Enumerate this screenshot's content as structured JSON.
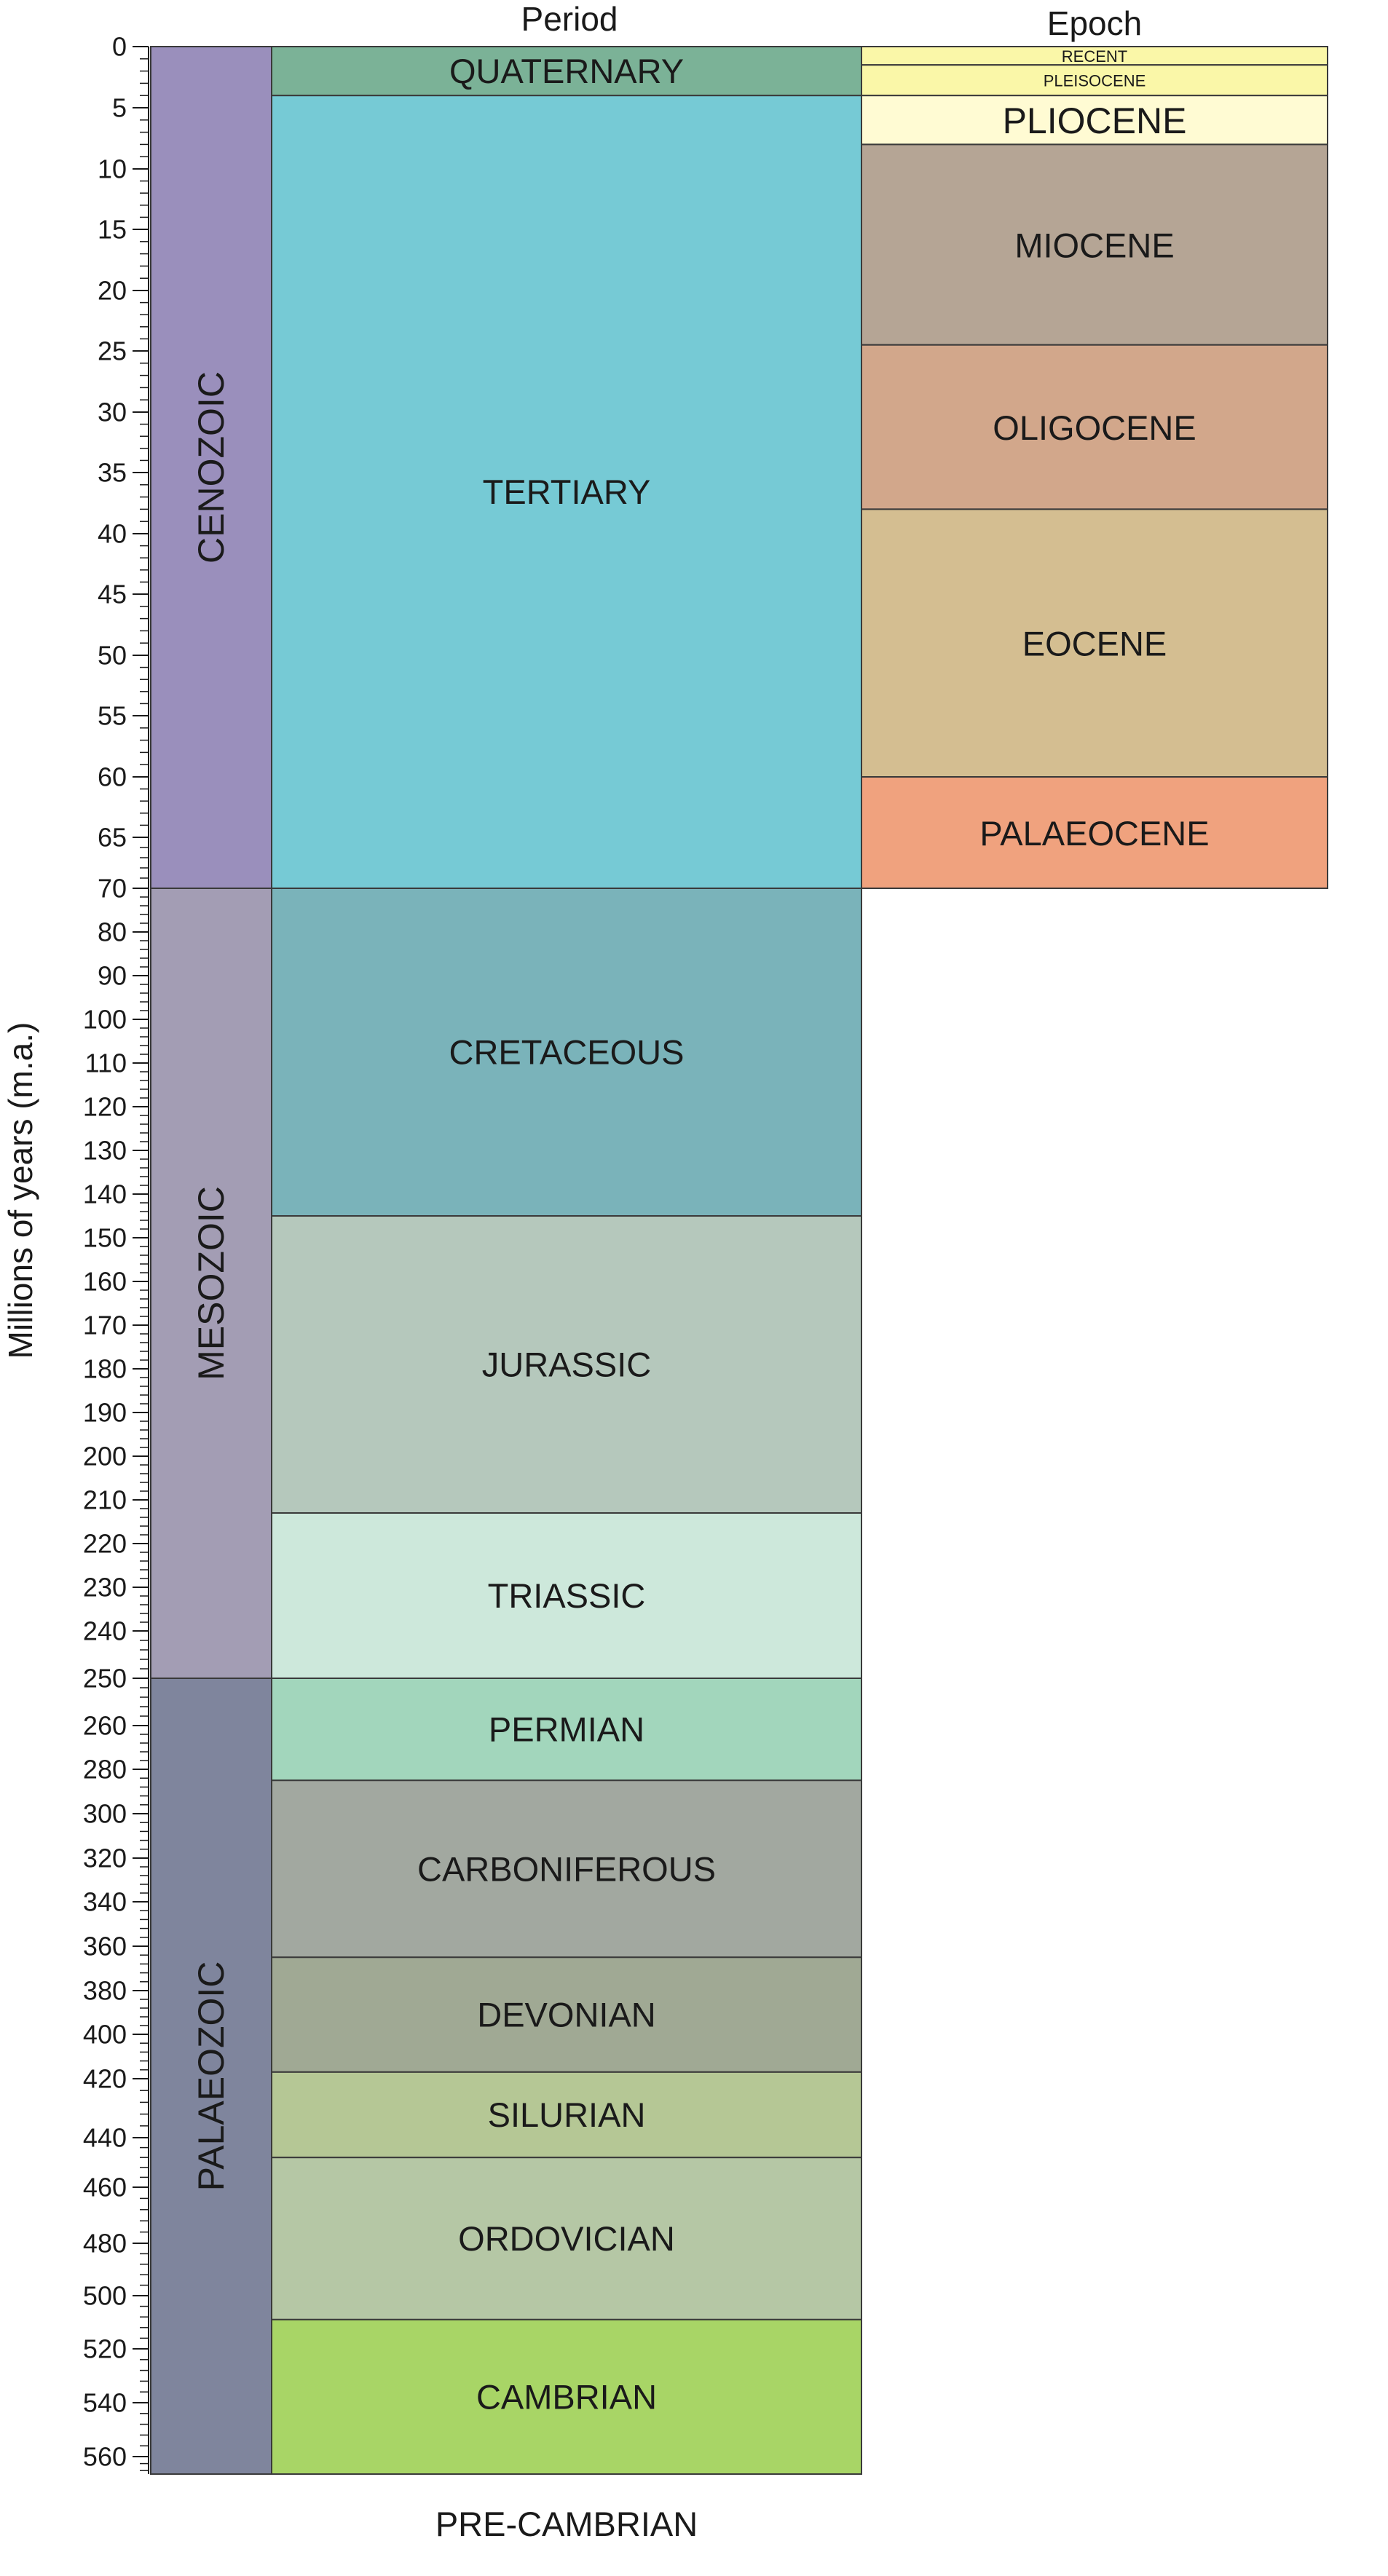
{
  "headers": {
    "period": "Period",
    "epoch": "Epoch"
  },
  "y_axis_label": "Millions of years (m.a.)",
  "footer_label": "PRE-CAMBRIAN",
  "chart_data": {
    "type": "table",
    "ticks": [
      {
        "label": "0",
        "value": 0
      },
      {
        "label": "5",
        "value": 5
      },
      {
        "label": "10",
        "value": 10
      },
      {
        "label": "15",
        "value": 15
      },
      {
        "label": "20",
        "value": 20
      },
      {
        "label": "25",
        "value": 25
      },
      {
        "label": "30",
        "value": 30
      },
      {
        "label": "35",
        "value": 35
      },
      {
        "label": "40",
        "value": 40
      },
      {
        "label": "45",
        "value": 45
      },
      {
        "label": "50",
        "value": 50
      },
      {
        "label": "55",
        "value": 55
      },
      {
        "label": "60",
        "value": 60
      },
      {
        "label": "65",
        "value": 65
      },
      {
        "label": "70",
        "value": 70
      },
      {
        "label": "80",
        "value": 80
      },
      {
        "label": "90",
        "value": 90
      },
      {
        "label": "100",
        "value": 100
      },
      {
        "label": "110",
        "value": 110
      },
      {
        "label": "120",
        "value": 120
      },
      {
        "label": "130",
        "value": 130
      },
      {
        "label": "140",
        "value": 140
      },
      {
        "label": "150",
        "value": 150
      },
      {
        "label": "160",
        "value": 160
      },
      {
        "label": "170",
        "value": 170
      },
      {
        "label": "180",
        "value": 180
      },
      {
        "label": "190",
        "value": 190
      },
      {
        "label": "200",
        "value": 200
      },
      {
        "label": "210",
        "value": 210
      },
      {
        "label": "220",
        "value": 220
      },
      {
        "label": "230",
        "value": 230
      },
      {
        "label": "240",
        "value": 240
      },
      {
        "label": "250",
        "value": 250
      },
      {
        "label": "260",
        "value": 260
      },
      {
        "label": "280",
        "value": 280
      },
      {
        "label": "300",
        "value": 300
      },
      {
        "label": "320",
        "value": 320
      },
      {
        "label": "340",
        "value": 340
      },
      {
        "label": "360",
        "value": 360
      },
      {
        "label": "380",
        "value": 380
      },
      {
        "label": "400",
        "value": 400
      },
      {
        "label": "420",
        "value": 420
      },
      {
        "label": "440",
        "value": 440
      },
      {
        "label": "460",
        "value": 460
      },
      {
        "label": "480",
        "value": 480
      },
      {
        "label": "500",
        "value": 500
      },
      {
        "label": "520",
        "value": 520
      },
      {
        "label": "540",
        "value": 540
      },
      {
        "label": "560",
        "value": 560
      }
    ],
    "eras": [
      {
        "name": "CENOZOIC",
        "start": 0,
        "end": 70,
        "color": "#9a8fbc"
      },
      {
        "name": "MESOZOIC",
        "start": 70,
        "end": 250,
        "color": "#a39db4"
      },
      {
        "name": "PALAEOZOIC",
        "start": 250,
        "end": 570,
        "color": "#7f859d"
      }
    ],
    "periods": [
      {
        "name": "QUATERNARY",
        "start": 0,
        "end": 4,
        "color": "#7bb297"
      },
      {
        "name": "TERTIARY",
        "start": 4,
        "end": 70,
        "color": "#76cad5"
      },
      {
        "name": "CRETACEOUS",
        "start": 70,
        "end": 145,
        "color": "#7ab3ba"
      },
      {
        "name": "JURASSIC",
        "start": 145,
        "end": 213,
        "color": "#b5c8bc"
      },
      {
        "name": "TRIASSIC",
        "start": 213,
        "end": 250,
        "color": "#cde8db"
      },
      {
        "name": "PERMIAN",
        "start": 250,
        "end": 285,
        "color": "#a2d6bc"
      },
      {
        "name": "CARBONIFEROUS",
        "start": 285,
        "end": 365,
        "color": "#a2a8a0"
      },
      {
        "name": "DEVONIAN",
        "start": 365,
        "end": 417,
        "color": "#a0a994"
      },
      {
        "name": "SILURIAN",
        "start": 417,
        "end": 448,
        "color": "#b5c795"
      },
      {
        "name": "ORDOVICIAN",
        "start": 448,
        "end": 509,
        "color": "#b5c7a5"
      },
      {
        "name": "CAMBRIAN",
        "start": 509,
        "end": 570,
        "color": "#a8d566"
      }
    ],
    "epochs": [
      {
        "name": "RECENT",
        "start": 0,
        "end": 1.5,
        "color": "#faf7a8",
        "size": "small"
      },
      {
        "name": "PLEISOCENE",
        "start": 1.5,
        "end": 4,
        "color": "#faf7a8",
        "size": "small"
      },
      {
        "name": "PLIOCENE",
        "start": 4,
        "end": 8,
        "color": "#fffbd3",
        "size": "large"
      },
      {
        "name": "MIOCENE",
        "start": 8,
        "end": 24.5,
        "color": "#b5a595",
        "size": "normal"
      },
      {
        "name": "OLIGOCENE",
        "start": 24.5,
        "end": 38,
        "color": "#d2a78b",
        "size": "normal"
      },
      {
        "name": "EOCENE",
        "start": 38,
        "end": 60,
        "color": "#d4be91",
        "size": "normal"
      },
      {
        "name": "PALAEOCENE",
        "start": 60,
        "end": 70,
        "color": "#f0a27e",
        "size": "normal"
      }
    ]
  }
}
